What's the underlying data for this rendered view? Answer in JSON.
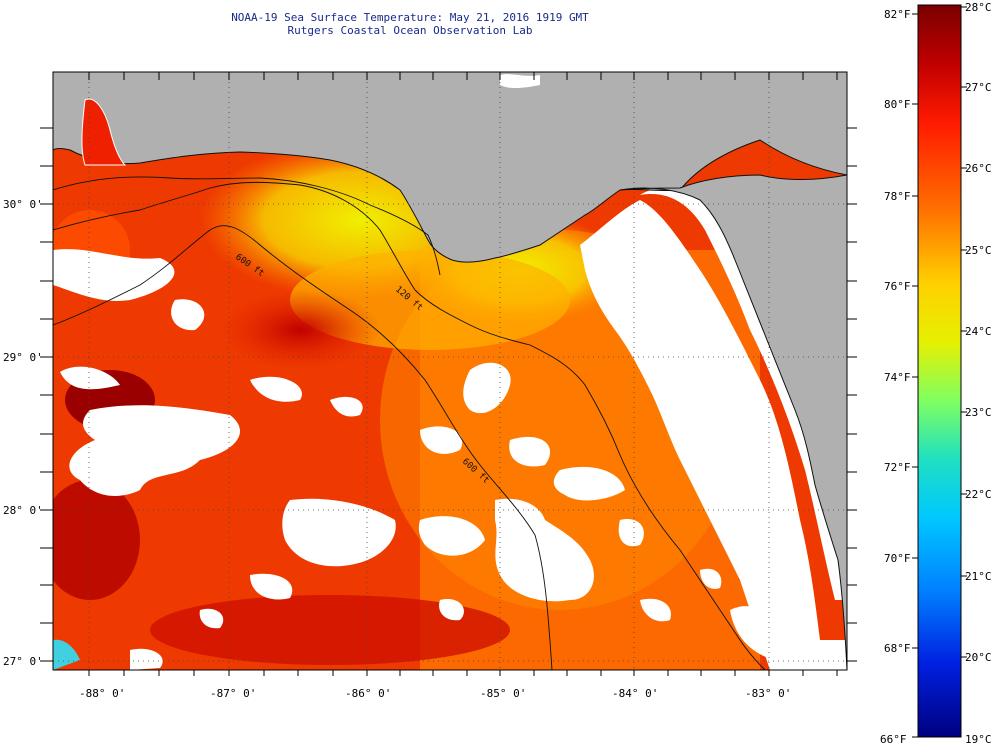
{
  "header": {
    "title_line1": "NOAA-19 Sea Surface Temperature:  May 21, 2016 1919 GMT",
    "title_line2": "Rutgers Coastal Ocean Observation Lab"
  },
  "map": {
    "latitude_labels": [
      "30° 0'",
      "29° 0'",
      "28° 0'",
      "27° 0'"
    ],
    "longitude_labels": [
      "-88° 0'",
      "-87° 0'",
      "-86° 0'",
      "-85° 0'",
      "-84° 0'",
      "-83° 0'"
    ],
    "contour_labels": [
      "120 ft",
      "600 ft",
      "600 ft"
    ],
    "colors": {
      "land": "#b0b0b0",
      "cloud": "#ffffff",
      "water_warm": "#ee3a00",
      "water_cool": "#f5e800"
    }
  },
  "colorbar": {
    "fahrenheit_labels": [
      "82°F",
      "80°F",
      "78°F",
      "76°F",
      "74°F",
      "72°F",
      "70°F",
      "68°F",
      "66°F"
    ],
    "celsius_labels": [
      "28°C",
      "27°C",
      "26°C",
      "25°C",
      "24°C",
      "23°C",
      "22°C",
      "21°C",
      "20°C",
      "19°C"
    ]
  }
}
